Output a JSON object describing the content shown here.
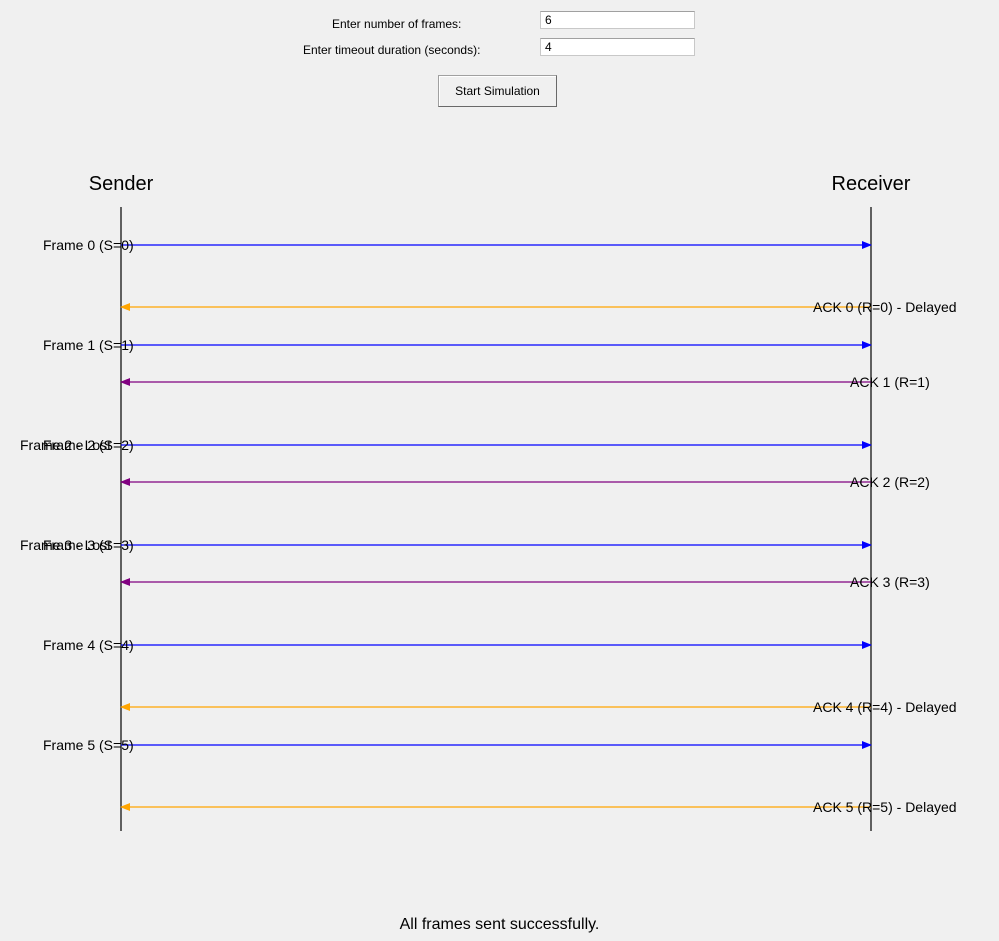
{
  "form": {
    "frames_label": "Enter number of frames:",
    "frames_value": "6",
    "timeout_label": "Enter timeout duration (seconds):",
    "timeout_value": "4",
    "start_button": "Start Simulation"
  },
  "diagram": {
    "sender_label": "Sender",
    "receiver_label": "Receiver",
    "colors": {
      "frame": "#0000ff",
      "ack": "#800080",
      "delayed": "#ffa500",
      "timeline": "#000000"
    },
    "events": [
      {
        "type": "frame",
        "label": "Frame 0 (S=0)"
      },
      {
        "type": "delayed",
        "label": "ACK 0 (R=0) - Delayed"
      },
      {
        "type": "frame",
        "label": "Frame 1 (S=1)"
      },
      {
        "type": "ack",
        "label": "ACK 1 (R=1)"
      },
      {
        "type": "frame",
        "label": "Frame 2 (S=2)",
        "overlay": "Frame 2 - Lost"
      },
      {
        "type": "ack",
        "label": "ACK 2 (R=2)"
      },
      {
        "type": "frame",
        "label": "Frame 3 (S=3)",
        "overlay": "Frame 3 - Lost"
      },
      {
        "type": "ack",
        "label": "ACK 3 (R=3)"
      },
      {
        "type": "frame",
        "label": "Frame 4 (S=4)"
      },
      {
        "type": "delayed",
        "label": "ACK 4 (R=4) - Delayed"
      },
      {
        "type": "frame",
        "label": "Frame 5 (S=5)"
      },
      {
        "type": "delayed",
        "label": "ACK 5 (R=5) - Delayed"
      }
    ]
  },
  "status": "All frames sent successfully."
}
